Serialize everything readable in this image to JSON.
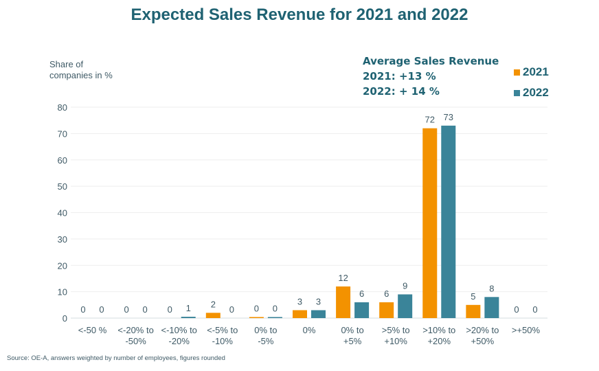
{
  "chart_data": {
    "type": "bar",
    "title": "Expected Sales Revenue for 2021 and 2022",
    "ylabel": "Share of\ncompanies in %",
    "xlabel": "",
    "ylim": [
      0,
      80
    ],
    "yticks": [
      0,
      10,
      20,
      30,
      40,
      50,
      60,
      70,
      80
    ],
    "grid": true,
    "legend_position": "top-right",
    "categories": [
      [
        "<-50 %"
      ],
      [
        "<-20% to",
        "-50%"
      ],
      [
        "<-10% to",
        "-20%"
      ],
      [
        "<-5% to",
        "-10%"
      ],
      [
        "0% to",
        "-5%"
      ],
      [
        "0%"
      ],
      [
        "0% to",
        "+5%"
      ],
      [
        ">5% to",
        "+10%"
      ],
      [
        ">10% to",
        "+20%"
      ],
      [
        ">20% to",
        "+50%"
      ],
      [
        ">+50%"
      ]
    ],
    "series": [
      {
        "name": "2021",
        "color": "#f39200",
        "values": [
          0,
          0,
          0,
          2,
          0.4,
          3,
          12,
          6,
          72,
          5,
          0
        ],
        "labels": [
          "0",
          "0",
          "0",
          "2",
          "0",
          "3",
          "12",
          "6",
          "72",
          "5",
          "0"
        ]
      },
      {
        "name": "2022",
        "color": "#3a8499",
        "values": [
          0,
          0,
          0.5,
          0,
          0.4,
          3,
          6,
          9,
          73,
          8,
          0
        ],
        "labels": [
          "0",
          "0",
          "1",
          "0",
          "0",
          "3",
          "6",
          "9",
          "73",
          "8",
          "0"
        ]
      }
    ],
    "annotation": {
      "heading": "Average Sales Revenue",
      "lines": [
        "2021: +13 %",
        "2022: + 14 %"
      ]
    },
    "source": "Source: OE-A, answers weighted by number of employees, figures rounded"
  }
}
